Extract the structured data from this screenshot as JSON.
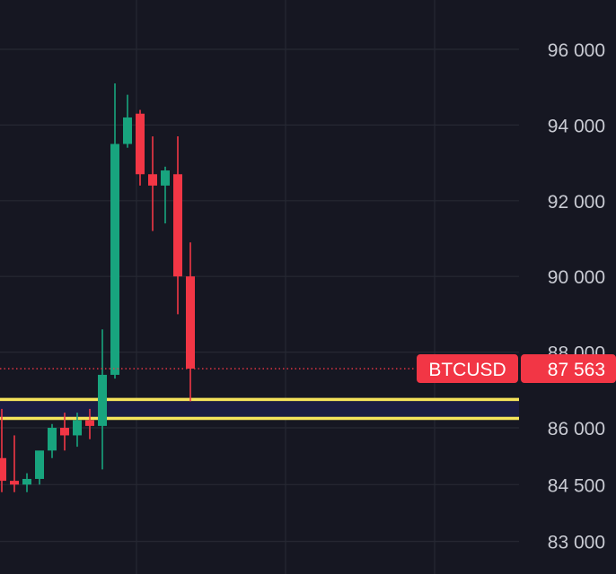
{
  "chart_data": {
    "type": "candlestick",
    "title": "",
    "xlabel": "",
    "ylabel": "",
    "ylim": [
      82700,
      97000
    ],
    "y_ticks": [
      {
        "value": 96000,
        "label": "96 000"
      },
      {
        "value": 94000,
        "label": "94 000"
      },
      {
        "value": 92000,
        "label": "92 000"
      },
      {
        "value": 90000,
        "label": "90 000"
      },
      {
        "value": 88000,
        "label": "88 000"
      },
      {
        "value": 86000,
        "label": "86 000"
      },
      {
        "value": 84500,
        "label": "84 500"
      },
      {
        "value": 83000,
        "label": "83 000"
      }
    ],
    "candles": [
      {
        "open": 85200,
        "high": 86500,
        "low": 84300,
        "close": 84600
      },
      {
        "open": 84600,
        "high": 85800,
        "low": 84300,
        "close": 84500
      },
      {
        "open": 84500,
        "high": 84800,
        "low": 84300,
        "close": 84650
      },
      {
        "open": 84650,
        "high": 85300,
        "low": 84500,
        "close": 85400
      },
      {
        "open": 85400,
        "high": 86100,
        "low": 85200,
        "close": 86000
      },
      {
        "open": 86000,
        "high": 86400,
        "low": 85400,
        "close": 85800
      },
      {
        "open": 85800,
        "high": 86400,
        "low": 85500,
        "close": 86200
      },
      {
        "open": 86200,
        "high": 86500,
        "low": 85700,
        "close": 86050
      },
      {
        "open": 86050,
        "high": 88600,
        "low": 84900,
        "close": 87400
      },
      {
        "open": 87400,
        "high": 95100,
        "low": 87300,
        "close": 93500
      },
      {
        "open": 93500,
        "high": 94800,
        "low": 93400,
        "close": 94200
      },
      {
        "open": 94300,
        "high": 94400,
        "low": 92400,
        "close": 92700
      },
      {
        "open": 92700,
        "high": 93700,
        "low": 91200,
        "close": 92400
      },
      {
        "open": 92400,
        "high": 92900,
        "low": 91400,
        "close": 92800
      },
      {
        "open": 92700,
        "high": 93700,
        "low": 89000,
        "close": 90000
      },
      {
        "open": 90000,
        "high": 90900,
        "low": 86700,
        "close": 87563
      }
    ],
    "support_zone": {
      "low": 86250,
      "high": 86750
    },
    "current_price": {
      "symbol": "BTCUSD",
      "value": 87563,
      "label": "87 563"
    },
    "colors": {
      "background": "#161722",
      "grid": "#262833",
      "up": "#18a47e",
      "down": "#f23645",
      "zone_line": "#f5e35b",
      "zone_fill": "#1c1d42",
      "price_tag": "#f23645",
      "axis_text": "#c9cbd3"
    }
  }
}
